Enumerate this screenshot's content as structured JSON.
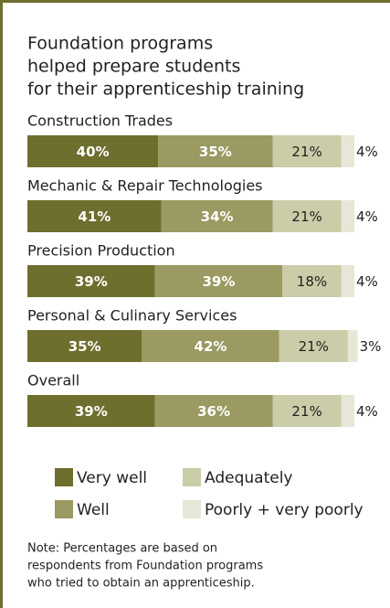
{
  "chart_data": {
    "type": "stacked-bar",
    "title": [
      "Foundation programs",
      "helped prepare students",
      "for their apprenticeship training"
    ],
    "categories": [
      "Construction Trades",
      "Mechanic & Repair Technologies",
      "Precision Production",
      "Personal & Culinary Services",
      "Overall"
    ],
    "xlim": [
      0,
      100
    ],
    "series": [
      {
        "name": "Very well",
        "color": "#6e6e2e",
        "values": [
          40,
          41,
          39,
          35,
          39
        ],
        "value_labels": [
          "40%",
          "41%",
          "39%",
          "35%",
          "39%"
        ]
      },
      {
        "name": "Well",
        "color": "#9a9a62",
        "values": [
          35,
          34,
          39,
          42,
          36
        ],
        "value_labels": [
          "35%",
          "34%",
          "39%",
          "42%",
          "36%"
        ]
      },
      {
        "name": "Adequately",
        "color": "#cbcca8",
        "values": [
          21,
          21,
          18,
          21,
          21
        ],
        "value_labels": [
          "21%",
          "21%",
          "18%",
          "21%",
          "21%"
        ]
      },
      {
        "name": "Poorly + very poorly",
        "color": "#e6e7d6",
        "values": [
          4,
          4,
          4,
          3,
          4
        ],
        "value_labels": [
          "4%",
          "4%",
          "4%",
          "3%",
          "4%"
        ]
      }
    ],
    "note": [
      "Note: Percentages are based on",
      "respondents from Foundation programs",
      "who tried to obtain an apprenticeship."
    ]
  }
}
